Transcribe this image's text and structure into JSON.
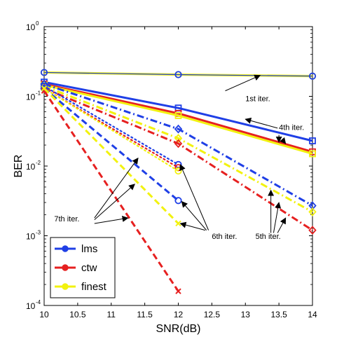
{
  "chart_data": {
    "type": "line",
    "title": "",
    "xlabel": "SNR(dB)",
    "ylabel": "BER",
    "xscale": "linear",
    "yscale": "log",
    "xlim": [
      10,
      14
    ],
    "ylim": [
      0.0001,
      1
    ],
    "grid": false,
    "legend_position": "bottom-left",
    "x_ticks": [
      "10",
      "10.5",
      "11",
      "11.5",
      "12",
      "12.5",
      "13",
      "13.5",
      "14"
    ],
    "y_ticks": [
      {
        "base": "10",
        "exp": "0"
      },
      {
        "base": "10",
        "exp": "-1"
      },
      {
        "base": "10",
        "exp": "-2"
      },
      {
        "base": "10",
        "exp": "-3"
      },
      {
        "base": "10",
        "exp": "-4"
      }
    ],
    "legend": [
      {
        "label": "lms",
        "color": "#1f3fe6"
      },
      {
        "label": "ctw",
        "color": "#e62020"
      },
      {
        "label": "finest",
        "color": "#f2f20f"
      }
    ],
    "series": [
      {
        "method": "finest",
        "iter": "1st",
        "color": "#f2f20f",
        "dash": "solid",
        "width": 3.2,
        "marker": "o",
        "x": [
          10,
          12,
          14
        ],
        "y": [
          0.22,
          0.205,
          0.195
        ]
      },
      {
        "method": "lms",
        "iter": "1st",
        "color": "#1f3fe6",
        "dash": "solid",
        "width": 1.2,
        "marker": "o",
        "x": [
          10,
          12,
          14
        ],
        "y": [
          0.22,
          0.205,
          0.195
        ]
      },
      {
        "method": "lms",
        "iter": "4th",
        "color": "#1f3fe6",
        "dash": "solid",
        "width": 3,
        "marker": "s",
        "x": [
          10,
          12,
          14
        ],
        "y": [
          0.16,
          0.068,
          0.023
        ]
      },
      {
        "method": "ctw",
        "iter": "4th",
        "color": "#e62020",
        "dash": "solid",
        "width": 3,
        "marker": "s",
        "x": [
          10,
          12,
          14
        ],
        "y": [
          0.15,
          0.057,
          0.016
        ]
      },
      {
        "method": "finest",
        "iter": "4th",
        "color": "#f2f20f",
        "dash": "solid",
        "width": 3,
        "marker": "s",
        "x": [
          10,
          12,
          14
        ],
        "y": [
          0.145,
          0.053,
          0.015
        ]
      },
      {
        "method": "lms",
        "iter": "5th",
        "color": "#1f3fe6",
        "dash": "dashdot",
        "width": 3,
        "marker": "d",
        "x": [
          10,
          12,
          14
        ],
        "y": [
          0.15,
          0.034,
          0.0027
        ]
      },
      {
        "method": "finest",
        "iter": "5th",
        "color": "#f2f20f",
        "dash": "dashdot",
        "width": 3,
        "marker": "d",
        "x": [
          10,
          12,
          14
        ],
        "y": [
          0.14,
          0.025,
          0.0022
        ]
      },
      {
        "method": "ctw",
        "iter": "5th",
        "color": "#e62020",
        "dash": "dashdot",
        "width": 3,
        "marker": "d",
        "x": [
          10,
          12,
          14
        ],
        "y": [
          0.13,
          0.021,
          0.0012
        ]
      },
      {
        "method": "lms",
        "iter": "6th",
        "color": "#1f3fe6",
        "dash": "dotted",
        "width": 2.2,
        "marker": "o",
        "x": [
          10,
          12
        ],
        "y": [
          0.14,
          0.0105
        ]
      },
      {
        "method": "ctw",
        "iter": "6th",
        "color": "#e62020",
        "dash": "dotted",
        "width": 2.2,
        "marker": "o",
        "x": [
          10,
          12
        ],
        "y": [
          0.13,
          0.0095
        ]
      },
      {
        "method": "finest",
        "iter": "6th",
        "color": "#f2f20f",
        "dash": "dotted",
        "width": 2.2,
        "marker": "o",
        "x": [
          10,
          12
        ],
        "y": [
          0.13,
          0.0085
        ]
      },
      {
        "method": "lms",
        "iter": "7th",
        "color": "#1f3fe6",
        "dash": "dashed",
        "width": 3,
        "marker": "o",
        "x": [
          10,
          12
        ],
        "y": [
          0.13,
          0.0032
        ]
      },
      {
        "method": "ctw",
        "iter": "7th",
        "color": "#e62020",
        "dash": "dashed",
        "width": 3,
        "marker": "x",
        "x": [
          10,
          12
        ],
        "y": [
          0.12,
          0.00016
        ]
      },
      {
        "method": "finest",
        "iter": "7th",
        "color": "#f2f20f",
        "dash": "dashed",
        "width": 3,
        "marker": "x",
        "x": [
          10,
          12
        ],
        "y": [
          0.13,
          0.0015
        ]
      }
    ],
    "annotations": [
      {
        "text": "1st iter.",
        "x": 13.0,
        "y": 0.085,
        "arrows": [
          [
            12.7,
            0.12,
            13.22,
            0.2
          ]
        ]
      },
      {
        "text": "4th iter.",
        "x": 13.5,
        "y": 0.033,
        "arrows": [
          [
            13.48,
            0.035,
            13.0,
            0.047
          ],
          [
            13.5,
            0.028,
            13.5,
            0.022
          ],
          [
            13.55,
            0.024,
            13.6,
            0.021
          ]
        ]
      },
      {
        "text": "5th iter.",
        "x": 13.15,
        "y": 0.0009,
        "arrows": [
          [
            13.38,
            0.0011,
            13.38,
            0.0045
          ],
          [
            13.42,
            0.0011,
            13.5,
            0.003
          ],
          [
            13.48,
            0.0011,
            13.6,
            0.0018
          ]
        ]
      },
      {
        "text": "6th iter.",
        "x": 12.5,
        "y": 0.0009,
        "arrows": [
          [
            12.45,
            0.0012,
            12.03,
            0.0105
          ],
          [
            12.42,
            0.0012,
            12.05,
            0.0031
          ],
          [
            12.4,
            0.0012,
            12.03,
            0.0015
          ]
        ]
      },
      {
        "text": "7th iter.",
        "x": 10.15,
        "y": 0.0016,
        "arrows": [
          [
            10.75,
            0.0018,
            11.4,
            0.013
          ],
          [
            10.75,
            0.0017,
            11.35,
            0.0055
          ],
          [
            10.75,
            0.0015,
            11.25,
            0.0018
          ]
        ]
      }
    ]
  }
}
